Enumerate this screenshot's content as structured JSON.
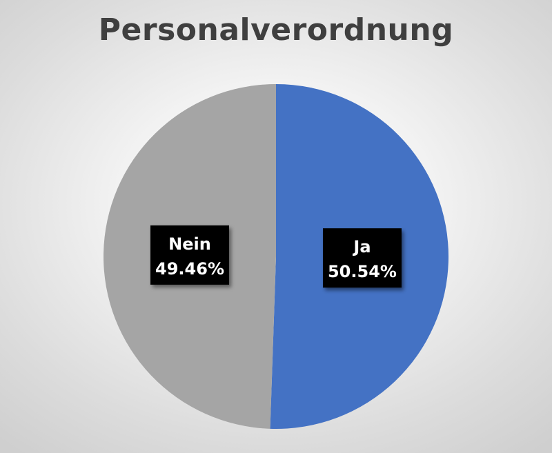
{
  "chart_data": {
    "type": "pie",
    "title": "Personalverordnung",
    "slices": [
      {
        "label": "Ja",
        "value": 50.54,
        "value_label": "50.54%",
        "color": "#4472C4"
      },
      {
        "label": "Nein",
        "value": 49.46,
        "value_label": "49.46%",
        "color": "#A5A5A5"
      }
    ],
    "start_angle": "12 o'clock",
    "direction": "clockwise",
    "legend": "none",
    "data_labels": "category name and percentage, inside slices, black box"
  }
}
